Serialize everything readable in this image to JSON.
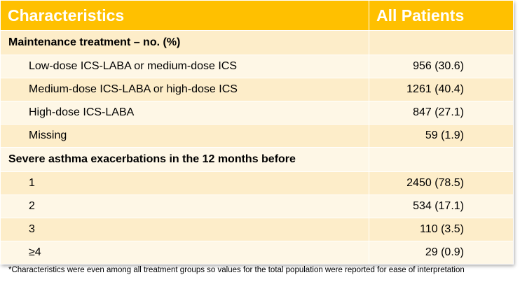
{
  "table": {
    "headers": [
      "Characteristics",
      "All Patients"
    ],
    "sections": [
      {
        "title": "Maintenance treatment – no. (%)",
        "rows": [
          {
            "label": "Low-dose ICS-LABA or medium-dose ICS",
            "value": "956 (30.6)"
          },
          {
            "label": "Medium-dose ICS-LABA or high-dose ICS",
            "value": "1261 (40.4)"
          },
          {
            "label": "High-dose ICS-LABA",
            "value": "847 (27.1)"
          },
          {
            "label": "Missing",
            "value": "59 (1.9)"
          }
        ]
      },
      {
        "title": "Severe asthma exacerbations in the 12 months before",
        "rows": [
          {
            "label": "1",
            "value": "2450 (78.5)"
          },
          {
            "label": "2",
            "value": "534 (17.1)"
          },
          {
            "label": "3",
            "value": "110 (3.5)"
          },
          {
            "label": "≥4",
            "value": "29 (0.9)"
          }
        ]
      }
    ]
  },
  "footnote": "*Characteristics were even among all treatment groups so values for the total population were reported for ease of interpretation",
  "colors": {
    "header_bg": "#ffc000",
    "row_dark": "#fdedc9",
    "row_light": "#fef7e6"
  }
}
